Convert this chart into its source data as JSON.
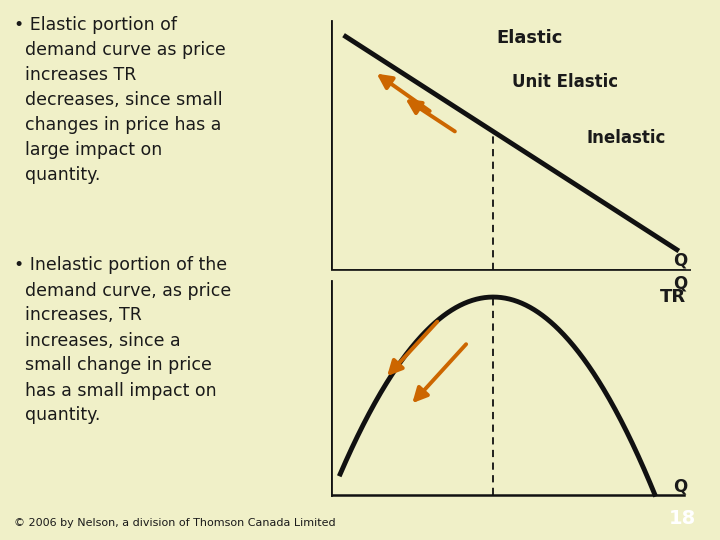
{
  "bg_color": "#f0f0c8",
  "text_color": "#1a1a1a",
  "arrow_color": "#cc6600",
  "line_color": "#111111",
  "bullet_text_1": "• Elastic portion of\n  demand curve as price\n  increases TR\n  decreases, since small\n  changes in price has a\n  large impact on\n  quantity.",
  "bullet_text_2": "• Inelastic portion of the\n  demand curve, as price\n  increases, TR\n  increases, since a\n  small change in price\n  has a small impact on\n  quantity.",
  "label_elastic": "Elastic",
  "label_unit": "Unit Elastic",
  "label_inelastic": "Inelastic",
  "label_Q1": "Q",
  "label_TR": "TR",
  "label_Q2": "Q",
  "footer": "© 2006 by Nelson, a division of Thomson Canada Limited",
  "page_num": "18",
  "page_bg": "#c04010"
}
